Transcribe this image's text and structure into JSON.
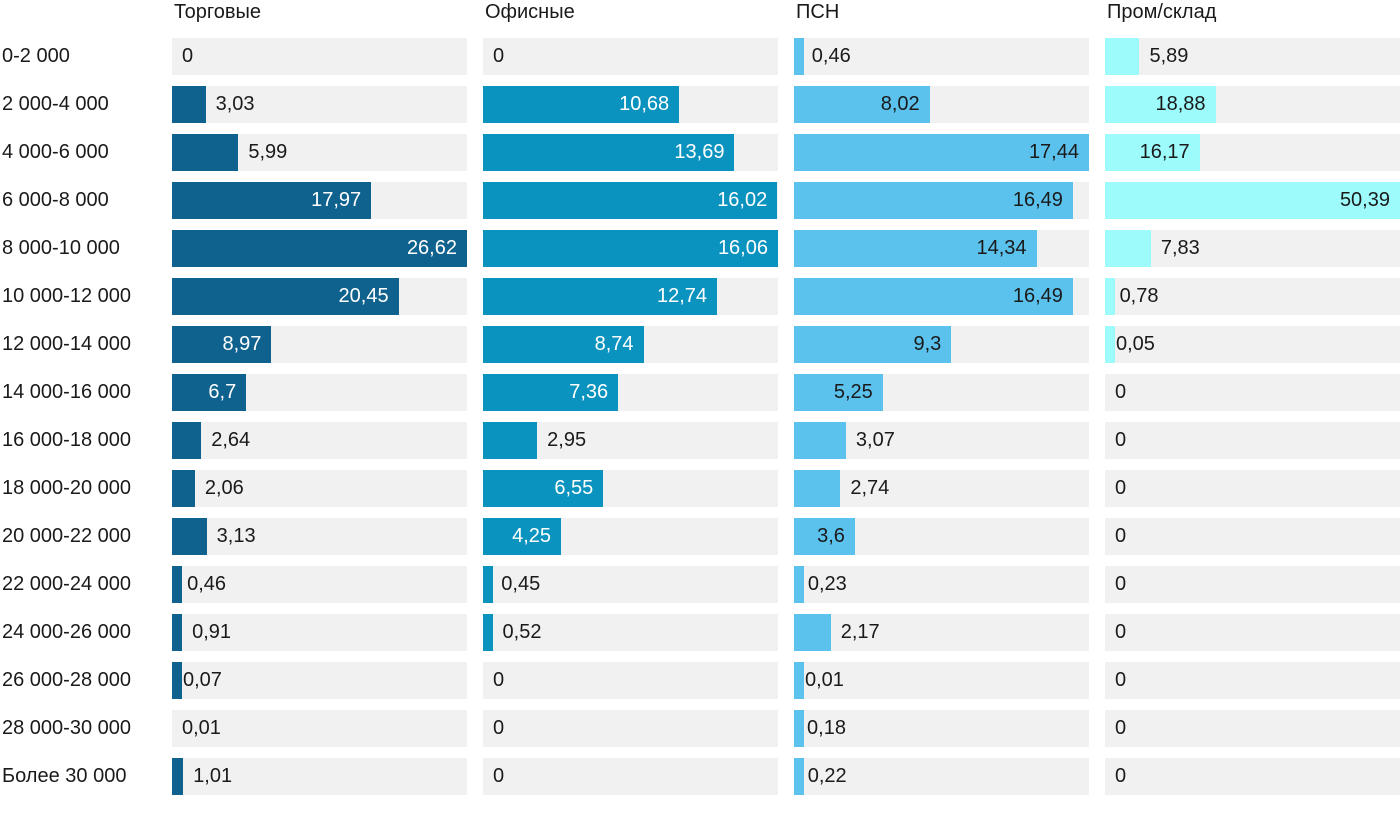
{
  "chart_data": {
    "type": "bar",
    "orientation": "horizontal",
    "layout": "small-multiples-4-columns, each column scaled to its own max value",
    "grid": "off",
    "track_background": "#f1f1f1",
    "label_color": "#1a1a1a",
    "value_label_color_outside": "#1a1a1a",
    "categories": [
      "0-2 000",
      "2 000-4 000",
      "4 000-6 000",
      "6 000-8 000",
      "8 000-10 000",
      "10 000-12 000",
      "12 000-14 000",
      "14 000-16 000",
      "16 000-18 000",
      "18 000-20 000",
      "20 000-22 000",
      "22 000-24 000",
      "24 000-26 000",
      "26 000-28 000",
      "28 000-30 000",
      "Более 30 000"
    ],
    "series": [
      {
        "name": "Торговые",
        "color": "#10628e",
        "inside_text_color": "#ffffff",
        "values": [
          0,
          3.03,
          5.99,
          17.97,
          26.62,
          20.45,
          8.97,
          6.7,
          2.64,
          2.06,
          3.13,
          0.46,
          0.91,
          0.07,
          0.01,
          1.01
        ],
        "labels": [
          "0",
          "3,03",
          "5,99",
          "17,97",
          "26,62",
          "20,45",
          "8,97",
          "6,7",
          "2,64",
          "2,06",
          "3,13",
          "0,46",
          "0,91",
          "0,07",
          "0,01",
          "1,01"
        ]
      },
      {
        "name": "Офисные",
        "color": "#0b93bf",
        "inside_text_color": "#ffffff",
        "values": [
          0,
          10.68,
          13.69,
          16.02,
          16.06,
          12.74,
          8.74,
          7.36,
          2.95,
          6.55,
          4.25,
          0.45,
          0.52,
          0,
          0,
          0
        ],
        "labels": [
          "0",
          "10,68",
          "13,69",
          "16,02",
          "16,06",
          "12,74",
          "8,74",
          "7,36",
          "2,95",
          "6,55",
          "4,25",
          "0,45",
          "0,52",
          "0",
          "0",
          "0"
        ]
      },
      {
        "name": "ПСН",
        "color": "#5bc2ee",
        "inside_text_color": "#1a1a1a",
        "values": [
          0.46,
          8.02,
          17.44,
          16.49,
          14.34,
          16.49,
          9.3,
          5.25,
          3.07,
          2.74,
          3.6,
          0.23,
          2.17,
          0.01,
          0.18,
          0.22
        ],
        "labels": [
          "0,46",
          "8,02",
          "17,44",
          "16,49",
          "14,34",
          "16,49",
          "9,3",
          "5,25",
          "3,07",
          "2,74",
          "3,6",
          "0,23",
          "2,17",
          "0,01",
          "0,18",
          "0,22"
        ]
      },
      {
        "name": "Пром/склад",
        "color": "#9efbfb",
        "inside_text_color": "#1a1a1a",
        "values": [
          5.89,
          18.88,
          16.17,
          50.39,
          7.83,
          0.78,
          0.05,
          0,
          0,
          0,
          0,
          0,
          0,
          0,
          0,
          0
        ],
        "labels": [
          "5,89",
          "18,88",
          "16,17",
          "50,39",
          "7,83",
          "0,78",
          "0,05",
          "0",
          "0",
          "0",
          "0",
          "0",
          "0",
          "0",
          "0",
          "0"
        ]
      }
    ]
  }
}
